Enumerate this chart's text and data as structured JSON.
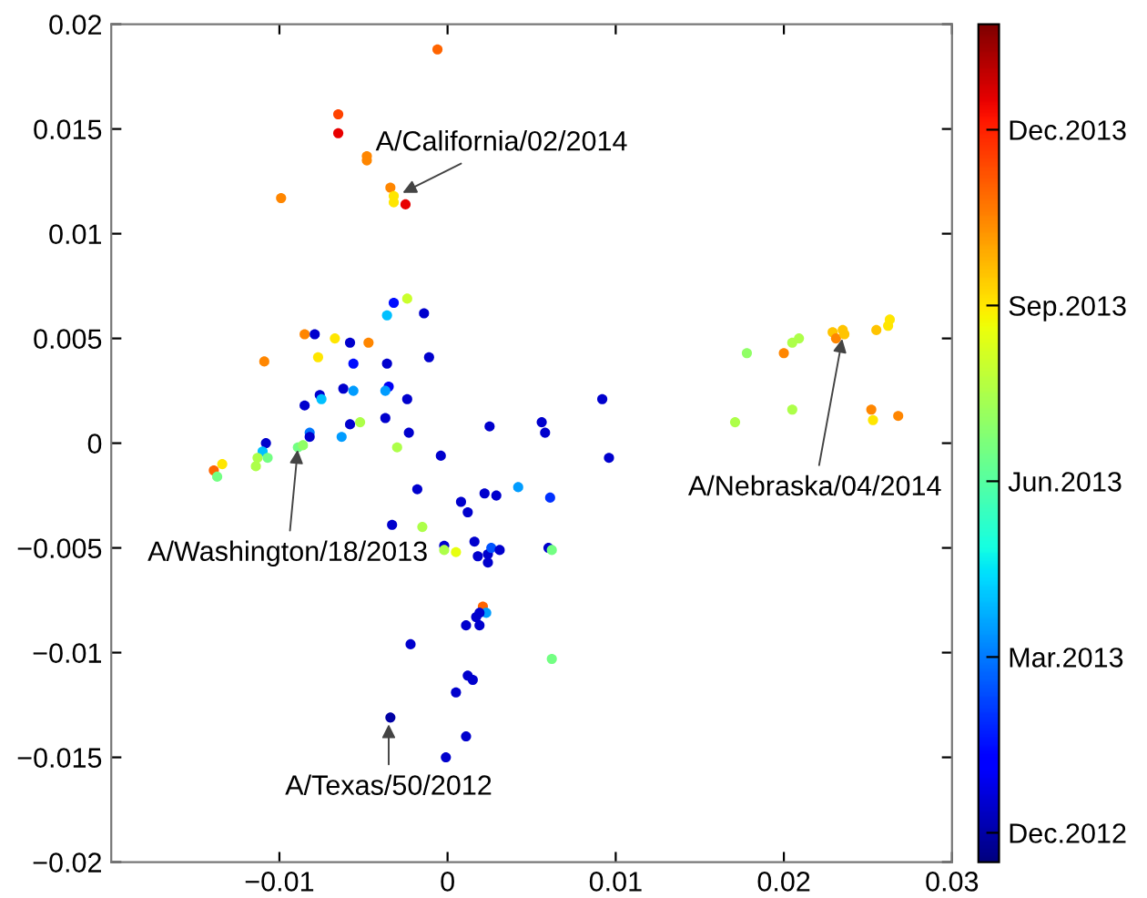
{
  "chart_data": {
    "type": "scatter",
    "x": [
      -0.0006,
      -0.0065,
      -0.0065,
      -0.0048,
      -0.0048,
      -0.0099,
      -0.0034,
      -0.0032,
      -0.0032,
      -0.0025,
      -0.0024,
      -0.0032,
      -0.0036,
      -0.0014,
      -0.0085,
      -0.0079,
      -0.0067,
      -0.0058,
      -0.0047,
      -0.0109,
      -0.0077,
      -0.0056,
      -0.0036,
      -0.0011,
      -0.0062,
      -0.0056,
      -0.0035,
      -0.0037,
      -0.0076,
      -0.0075,
      -0.0085,
      -0.0024,
      0.0092,
      -0.0037,
      -0.0052,
      -0.0058,
      0.0025,
      0.0056,
      0.0058,
      -0.0082,
      -0.0082,
      -0.0063,
      -0.0023,
      -0.0108,
      -0.011,
      -0.0113,
      -0.0107,
      -0.0114,
      -0.0134,
      -0.0139,
      -0.0137,
      -0.0089,
      -0.0086,
      -0.003,
      -0.0004,
      0.0096,
      -0.0018,
      0.0008,
      0.0012,
      0.0022,
      0.0029,
      0.0042,
      0.0061,
      -0.0033,
      -0.0015,
      -0.0002,
      -0.0002,
      0.0005,
      0.0016,
      0.0018,
      0.0024,
      0.0024,
      0.0026,
      0.0031,
      0.006,
      0.0062,
      0.0021,
      0.0023,
      0.0019,
      0.0017,
      0.0019,
      0.0011,
      -0.0022,
      0.0062,
      0.0012,
      0.0015,
      0.0005,
      -0.0034,
      0.0011,
      -0.0001,
      0.0178,
      0.02,
      0.0205,
      0.0209,
      0.0229,
      0.0231,
      0.0235,
      0.0236,
      0.0255,
      0.0262,
      0.0263,
      0.0171,
      0.0205,
      0.0252,
      0.0253,
      0.0268
    ],
    "values": [
      0.0188,
      0.0157,
      0.0148,
      0.0137,
      0.0135,
      0.0117,
      0.0122,
      0.0118,
      0.0115,
      0.0114,
      0.0069,
      0.0067,
      0.0061,
      0.0062,
      0.0052,
      0.0052,
      0.005,
      0.0048,
      0.0048,
      0.0039,
      0.0041,
      0.0038,
      0.0038,
      0.0041,
      0.0026,
      0.0025,
      0.0027,
      0.0025,
      0.0023,
      0.0021,
      0.0018,
      0.0021,
      0.0021,
      0.0012,
      0.001,
      0.0009,
      0.0008,
      0.001,
      0.0005,
      0.0005,
      0.0003,
      0.0003,
      0.0005,
      0.0,
      -0.0004,
      -0.0007,
      -0.0007,
      -0.0011,
      -0.001,
      -0.0013,
      -0.0016,
      -0.0002,
      -0.0001,
      -0.0002,
      -0.0006,
      -0.0007,
      -0.0022,
      -0.0028,
      -0.0033,
      -0.0024,
      -0.0025,
      -0.0021,
      -0.0026,
      -0.0039,
      -0.004,
      -0.0049,
      -0.0051,
      -0.0052,
      -0.0047,
      -0.0054,
      -0.0053,
      -0.0057,
      -0.005,
      -0.0051,
      -0.005,
      -0.0051,
      -0.0078,
      -0.0081,
      -0.0081,
      -0.0083,
      -0.0087,
      -0.0087,
      -0.0096,
      -0.0103,
      -0.0111,
      -0.0113,
      -0.0119,
      -0.0131,
      -0.014,
      -0.015,
      0.0043,
      0.0043,
      0.0048,
      0.005,
      0.0053,
      0.005,
      0.0054,
      0.0052,
      0.0054,
      0.0056,
      0.0059,
      0.001,
      0.0016,
      0.0016,
      0.0011,
      0.0013
    ],
    "cvalues": [
      11,
      11.5,
      12.5,
      10.5,
      10.5,
      10.5,
      10.5,
      9,
      9,
      12.5,
      8,
      1.5,
      4,
      0.5,
      10.5,
      0.5,
      9,
      0.5,
      10.5,
      10.5,
      9,
      1.5,
      0.5,
      0.5,
      0.5,
      3.5,
      1,
      3.5,
      0.5,
      4,
      0.5,
      0.5,
      0.5,
      0.5,
      7.5,
      0.5,
      0.5,
      0.5,
      0.5,
      3,
      0.5,
      3.5,
      0.5,
      0.5,
      4,
      7.5,
      6.5,
      7.5,
      9,
      11,
      6.5,
      6.5,
      7,
      7.5,
      0.5,
      0.5,
      0.5,
      0.5,
      0.5,
      0.5,
      0.5,
      3.5,
      2,
      0.5,
      7.5,
      0.5,
      7.5,
      8.5,
      0.5,
      0.5,
      0.5,
      0.5,
      2.5,
      0.5,
      0.5,
      6.5,
      11,
      3.5,
      0.5,
      0.5,
      0.5,
      0.5,
      0.5,
      6.5,
      0.5,
      0.5,
      0.5,
      0,
      0.5,
      0.5,
      7,
      10.5,
      7.5,
      7.5,
      9.5,
      10.5,
      9.5,
      9.5,
      9.5,
      9,
      9,
      7.5,
      7.5,
      10.5,
      9,
      10.5
    ],
    "marker": "circle",
    "xlim": [
      -0.02,
      0.03
    ],
    "xticks": [
      {
        "value": -0.01,
        "label": "−0.01"
      },
      0,
      0.01,
      0.02,
      0.03
    ],
    "ylim": [
      -0.02,
      0.02
    ],
    "yticks": [
      {
        "value": -0.02,
        "label": "−0.02"
      },
      {
        "value": -0.015,
        "label": "−0.015"
      },
      {
        "value": -0.01,
        "label": "−0.01"
      },
      {
        "value": -0.005,
        "label": "−0.005"
      },
      0,
      0.005,
      0.01,
      0.015,
      0.02
    ],
    "clim": [
      -0.5,
      13.8
    ],
    "cticks": [
      {
        "value": 0,
        "label": "Dec.2012"
      },
      {
        "value": 3,
        "label": "Mar.2013"
      },
      {
        "value": 6,
        "label": "Jun.2013"
      },
      {
        "value": 9,
        "label": "Sep.2013"
      },
      {
        "value": 12,
        "label": "Dec.2013"
      }
    ],
    "grid": false,
    "legend": false,
    "annotations": [
      {
        "text": "A/California/02/2014",
        "x": -0.0028,
        "y": 0.0119
      },
      {
        "text": "A/Washington/18/2013",
        "x": -0.0089,
        "y": -0.0002
      },
      {
        "text": "A/Texas/50/2012",
        "x": -0.0035,
        "y": -0.0133
      },
      {
        "text": "A/Nebraska/04/2014",
        "x": 0.0235,
        "y": 0.0051
      }
    ]
  }
}
